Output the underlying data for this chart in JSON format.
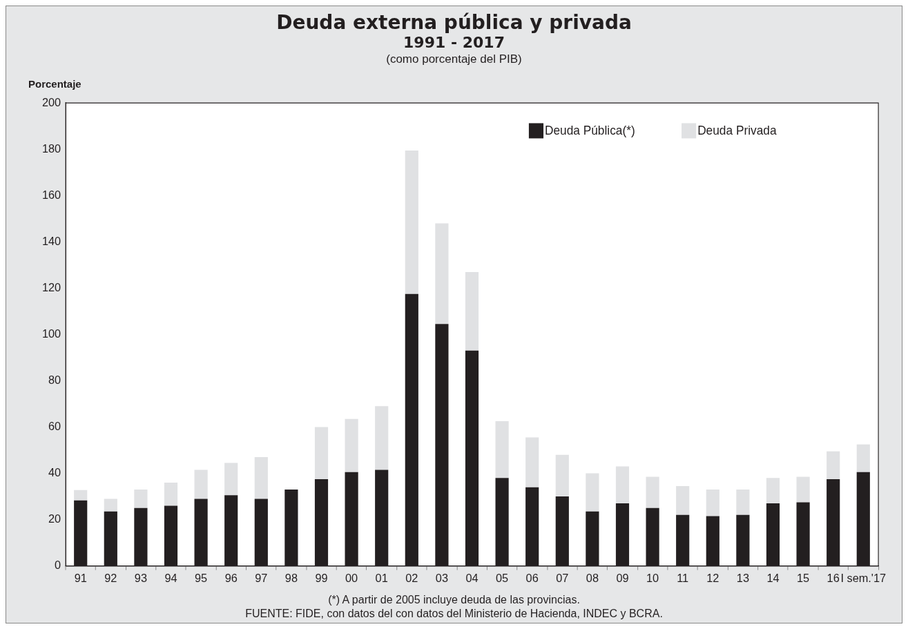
{
  "chart_data": {
    "type": "bar",
    "title": "Deuda externa pública y privada",
    "subtitle": "1991 - 2017",
    "ylabel": "Porcentaje",
    "annotations": [
      "(como porcentaje del PIB)",
      "(*) A partir de 2005 incluye deuda de las provincias.",
      "FUENTE: FIDE, con datos del con datos del Ministerio de Hacienda, INDEC y BCRA."
    ],
    "categories": [
      "91",
      "92",
      "93",
      "94",
      "95",
      "96",
      "97",
      "98",
      "99",
      "00",
      "01",
      "02",
      "03",
      "04",
      "05",
      "06",
      "07",
      "08",
      "09",
      "10",
      "11",
      "12",
      "13",
      "14",
      "15",
      "16",
      "I sem.'17"
    ],
    "stacked": true,
    "series": [
      {
        "name": "Deuda Pública(*)",
        "color": "#231f20",
        "values": [
          28.3,
          23.5,
          25,
          26,
          29,
          30.5,
          29,
          33,
          37.5,
          40.5,
          41.5,
          117.5,
          104.5,
          93,
          38,
          34,
          30,
          23.5,
          27,
          25,
          22,
          21.5,
          22,
          27,
          27.5,
          37.5,
          40.5
        ]
      },
      {
        "name": "Deuda Privada",
        "color": "#e0e1e3",
        "values": [
          4.5,
          5.5,
          8,
          10,
          12.5,
          14,
          18,
          0,
          22.5,
          23,
          27.5,
          62,
          43.5,
          34,
          24.5,
          21.5,
          18,
          16.5,
          16,
          13.5,
          12.5,
          11.5,
          11,
          11,
          11,
          12,
          12
        ]
      }
    ],
    "ylim": [
      0,
      200
    ],
    "yticks": [
      0,
      20,
      40,
      60,
      80,
      100,
      120,
      140,
      160,
      180,
      200
    ],
    "grid": false,
    "legend": "top right"
  }
}
